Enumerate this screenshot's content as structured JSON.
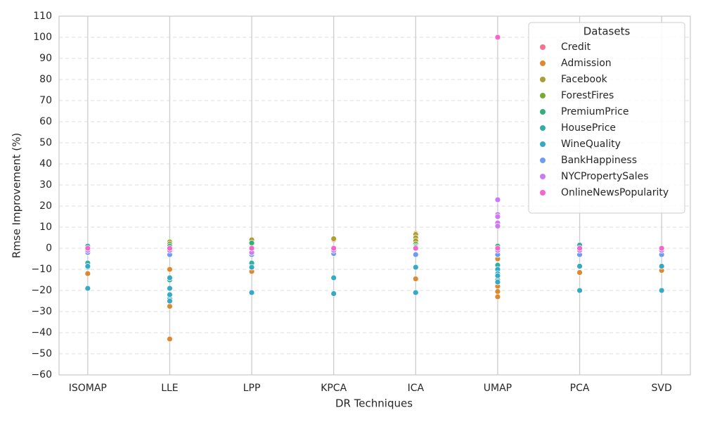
{
  "chart_data": {
    "type": "scatter",
    "x_label": "DR Techniques",
    "y_label": "Rmse Improvement (%)",
    "categories": [
      "ISOMAP",
      "LLE",
      "LPP",
      "KPCA",
      "ICA",
      "UMAP",
      "PCA",
      "SVD"
    ],
    "ylim": [
      -60,
      110
    ],
    "yticks": [
      {
        "value": -60,
        "label": "−60"
      },
      {
        "value": -50,
        "label": "−50"
      },
      {
        "value": -40,
        "label": "−40"
      },
      {
        "value": -30,
        "label": "−30"
      },
      {
        "value": -20,
        "label": "−20"
      },
      {
        "value": -10,
        "label": "−10"
      },
      0,
      10,
      20,
      30,
      40,
      50,
      60,
      70,
      80,
      90,
      100,
      110
    ],
    "grid": true,
    "legend_title": "Datasets",
    "legend_position": "upper right",
    "series": [
      {
        "name": "Credit",
        "color": "#f77189",
        "x": [
          "ISOMAP",
          "LLE",
          "LPP",
          "KPCA",
          "ICA",
          "UMAP",
          "PCA",
          "SVD"
        ],
        "values": [
          0,
          0,
          0,
          0,
          0,
          0,
          0,
          0
        ]
      },
      {
        "name": "Admission",
        "color": "#dc8932",
        "x": [
          "ISOMAP",
          "LLE",
          "LLE",
          "LLE",
          "LPP",
          "KPCA",
          "ICA",
          "ICA",
          "UMAP",
          "UMAP",
          "UMAP",
          "UMAP",
          "PCA",
          "SVD"
        ],
        "values": [
          -12,
          -10,
          -27.5,
          -43,
          -11,
          4,
          7,
          -14.5,
          -5,
          -18,
          -20.5,
          -23,
          -11.5,
          -10.5
        ]
      },
      {
        "name": "Facebook",
        "color": "#ae9d31",
        "x": [
          "ISOMAP",
          "LLE",
          "LPP",
          "KPCA",
          "ICA",
          "ICA",
          "ICA"
        ],
        "values": [
          0,
          3,
          4,
          4.5,
          6.5,
          5,
          3.5
        ]
      },
      {
        "name": "ForestFires",
        "color": "#77ab31",
        "x": [
          "ISOMAP",
          "LLE",
          "LPP",
          "ICA"
        ],
        "values": [
          0.5,
          2,
          2,
          2
        ]
      },
      {
        "name": "PremiumPrice",
        "color": "#33b07a",
        "x": [
          "ISOMAP",
          "LLE",
          "LPP",
          "ICA",
          "UMAP",
          "UMAP"
        ],
        "values": [
          1,
          1,
          2.5,
          1,
          1,
          -2
        ]
      },
      {
        "name": "HousePrice",
        "color": "#36ada4",
        "x": [
          "ISOMAP",
          "ISOMAP",
          "ISOMAP",
          "LLE",
          "LLE",
          "LPP",
          "ICA",
          "UMAP",
          "UMAP",
          "PCA"
        ],
        "values": [
          1,
          -7,
          -9,
          -15,
          -24,
          -7,
          0.5,
          -8,
          -15,
          1.5
        ]
      },
      {
        "name": "WineQuality",
        "color": "#38a9c5",
        "x": [
          "ISOMAP",
          "ISOMAP",
          "LLE",
          "LLE",
          "LLE",
          "LLE",
          "LPP",
          "LPP",
          "KPCA",
          "KPCA",
          "ICA",
          "ICA",
          "UMAP",
          "UMAP",
          "UMAP",
          "UMAP",
          "PCA",
          "PCA",
          "SVD",
          "SVD"
        ],
        "values": [
          -19,
          -8.5,
          -14,
          -19,
          -22,
          -25,
          -21,
          -9,
          -14,
          -21.5,
          -9,
          -21,
          -10,
          -12,
          -16,
          -13,
          -8.5,
          -20,
          -8.5,
          -20
        ]
      },
      {
        "name": "BankHappiness",
        "color": "#6e9bf4",
        "x": [
          "ISOMAP",
          "LLE",
          "LPP",
          "KPCA",
          "ICA",
          "UMAP",
          "PCA",
          "SVD"
        ],
        "values": [
          -2,
          -3,
          -3,
          -2.5,
          -3,
          -3,
          -3,
          -3
        ]
      },
      {
        "name": "NYCPropertySales",
        "color": "#cc7af4",
        "x": [
          "ISOMAP",
          "LLE",
          "LPP",
          "KPCA",
          "UMAP",
          "UMAP",
          "UMAP",
          "UMAP",
          "UMAP",
          "UMAP",
          "PCA",
          "SVD"
        ],
        "values": [
          -1,
          -1,
          -2,
          -1,
          23,
          16,
          15,
          12,
          10.5,
          -1,
          -1,
          -1
        ]
      },
      {
        "name": "OnlineNewsPopularity",
        "color": "#f565cc",
        "x": [
          "ISOMAP",
          "LLE",
          "LPP",
          "KPCA",
          "ICA",
          "UMAP",
          "UMAP",
          "PCA",
          "SVD"
        ],
        "values": [
          0,
          0,
          0,
          0,
          0,
          100,
          0,
          0,
          0
        ]
      }
    ]
  }
}
